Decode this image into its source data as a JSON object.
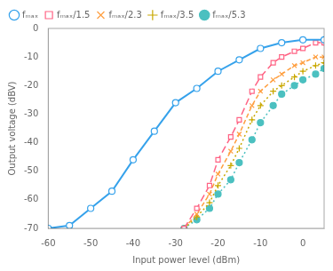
{
  "chart_data": {
    "type": "line",
    "xlabel": "Input power level (dBm)",
    "ylabel": "Output voltage (dBV)",
    "xlim": [
      -60,
      5
    ],
    "ylim": [
      -70,
      0
    ],
    "xticks": [
      -60,
      -50,
      -40,
      -30,
      -20,
      -10,
      0
    ],
    "yticks": [
      0,
      -10,
      -20,
      -30,
      -40,
      -50,
      -60,
      -70
    ],
    "grid": false,
    "legend": "upper left",
    "series": [
      {
        "name": "fₘₐₓ",
        "marker": "circle-open",
        "line_style": "solid",
        "x": [
          -60,
          -55,
          -50,
          -45,
          -40,
          -35,
          -30,
          -25,
          -20,
          -15,
          -10,
          -5,
          0,
          5
        ],
        "values": [
          -70,
          -69,
          -63,
          -57,
          -46,
          -36,
          -26,
          -21,
          -15,
          -11,
          -7,
          -5,
          -4,
          -4
        ]
      },
      {
        "name": "fₘₐₓ/1.5",
        "marker": "square-open",
        "line_style": "long-dashed",
        "x": [
          -28,
          -25,
          -22,
          -20,
          -17,
          -15,
          -12,
          -10,
          -7,
          -5,
          -2,
          0,
          3,
          5
        ],
        "values": [
          -70,
          -63,
          -55,
          -46,
          -38,
          -32,
          -22,
          -17,
          -12,
          -10,
          -8,
          -7,
          -5,
          -5
        ]
      },
      {
        "name": "fₘₐₓ/2.3",
        "marker": "x",
        "line_style": "dashed",
        "x": [
          -28,
          -25,
          -22,
          -20,
          -17,
          -15,
          -12,
          -10,
          -7,
          -5,
          -2,
          0,
          3,
          5
        ],
        "values": [
          -70,
          -65,
          -58,
          -51,
          -43,
          -37,
          -27,
          -22,
          -18,
          -16,
          -13,
          -12,
          -10,
          -10
        ]
      },
      {
        "name": "fₘₐₓ/3.5",
        "marker": "plus",
        "line_style": "dotted",
        "x": [
          -28,
          -25,
          -22,
          -20,
          -17,
          -15,
          -12,
          -10,
          -7,
          -5,
          -2,
          0,
          3,
          5
        ],
        "values": [
          -70,
          -66,
          -61,
          -55,
          -48,
          -42,
          -32,
          -27,
          -22,
          -20,
          -17,
          -15,
          -13,
          -12
        ]
      },
      {
        "name": "fₘₐₓ/5.3",
        "marker": "circle",
        "line_style": "dotted",
        "x": [
          -28,
          -25,
          -22,
          -20,
          -17,
          -15,
          -12,
          -10,
          -7,
          -5,
          -2,
          0,
          3,
          5
        ],
        "values": [
          -70,
          -67,
          -63,
          -58,
          -53,
          -47,
          -39,
          -33,
          -27,
          -23,
          -20,
          -18,
          -16,
          -14
        ]
      }
    ]
  }
}
